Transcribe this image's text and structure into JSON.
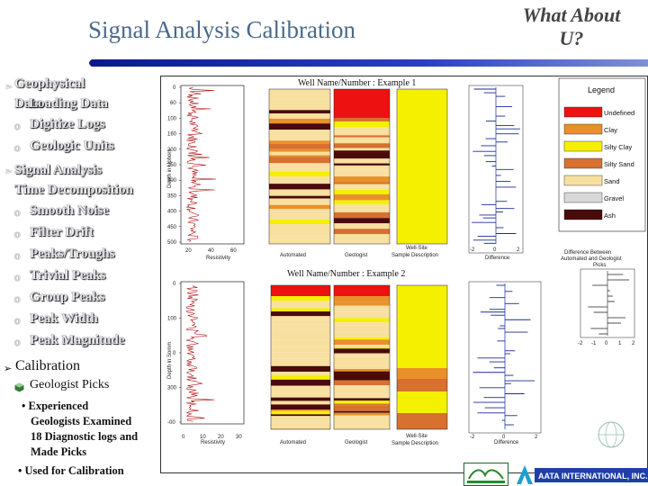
{
  "slide": {
    "title": "Signal Analysis Calibration",
    "corner_line1": "What About",
    "corner_line2": "U?"
  },
  "bullets": {
    "geo_line1": "Geophysical",
    "geo_line2a": "Data",
    "geo_line2b": "Loading Data",
    "digitize": "Digitize Logs",
    "geounits": "Geologic Units",
    "signal_line1": "Signal Analysis",
    "signal_line2": "Time Decomposition",
    "smooth": "Smooth Noise",
    "filter": "Filter Drift",
    "peaks": "Peaks/Troughs",
    "trivial": "Trivial Peaks",
    "group": "Group Peaks",
    "width": "Peak Width",
    "magnitude": "Peak Magnitude",
    "calibration": "Calibration",
    "geologist_picks": "Geologist Picks",
    "note1_l1": "• Experienced",
    "note1_l2": "Geologists Examined",
    "note1_l3": "18 Diagnostic logs and",
    "note1_l4": "Made Picks",
    "note2": "• Used for Calibration"
  },
  "figure": {
    "well1_title": "Well Name/Number : Example 1",
    "well2_title": "Well Name/Number : Example 2",
    "depth_axis_label": "Depth in Uphors",
    "depth_axis_label2": "Depth in Somm",
    "resistivity": "Resistivity",
    "automated": "Automated",
    "geologist": "Geologist",
    "wellsite_l1": "Well-Site",
    "wellsite_l2": "Sample Description",
    "difference": "Difference",
    "legend_title": "Legend",
    "legend": [
      {
        "label": "Undefined",
        "color": "#ee1111"
      },
      {
        "label": "Clay",
        "color": "#e8902a"
      },
      {
        "label": "Silty Clay",
        "color": "#f5f000"
      },
      {
        "label": "Silty Sand",
        "color": "#d87030"
      },
      {
        "label": "Sand",
        "color": "#f8e0a0"
      },
      {
        "label": "Gravel",
        "color": "#d8d8d8"
      },
      {
        "label": "Ash",
        "color": "#4a0a0a"
      }
    ],
    "diff_title_l1": "Difference Between",
    "diff_title_l2": "Automated and Geologist",
    "diff_title_l3": "Picks",
    "diff_ticks": [
      "-2",
      "-1",
      "0",
      "1",
      "2"
    ],
    "depth_ticks_1": [
      "0",
      "60",
      "100",
      "160",
      "200",
      "250",
      "300",
      "350",
      "400",
      "450",
      "500"
    ],
    "depth_ticks_2": [
      "0",
      "100",
      "0",
      "300",
      "-00"
    ],
    "res_ticks": [
      "20",
      "40",
      "60"
    ],
    "res_ticks_2": [
      "0",
      "10",
      "20",
      "30"
    ],
    "diff_axis_1": [
      "-2",
      "0",
      "2"
    ],
    "diff_axis_2": [
      "-2",
      "0",
      "2"
    ]
  },
  "logos": {
    "aata": "AATA INTERNATIONAL, INC."
  },
  "colors": {
    "title": "#4a6a8a",
    "rule": "#1c2eaa",
    "undefined": "#ee1111",
    "clay": "#e8902a",
    "silty_clay": "#f5f000",
    "silty_sand": "#d87030",
    "sand": "#f8e0a0",
    "ash": "#4a0a0a"
  }
}
